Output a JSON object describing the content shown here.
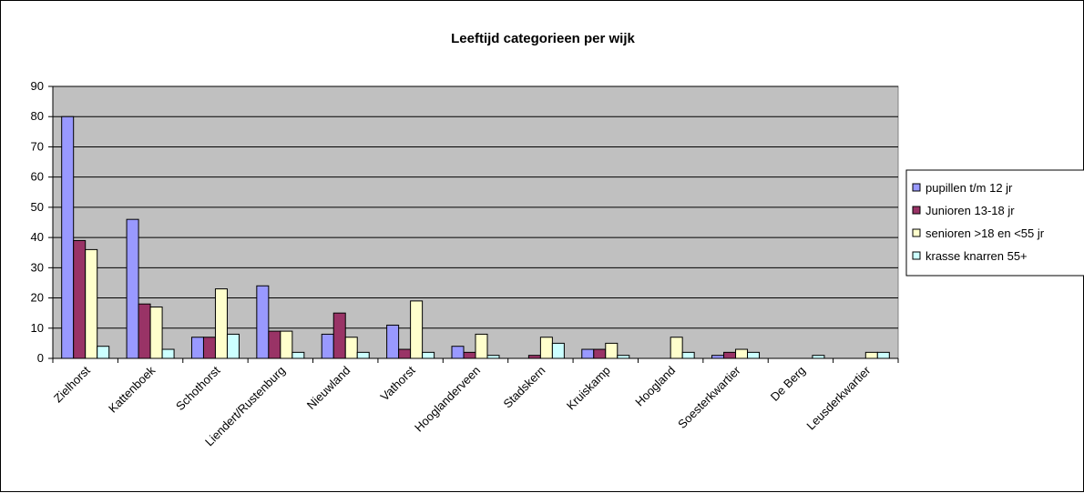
{
  "chart_data": {
    "type": "bar",
    "title": "Leeftijd categorieen per wijk",
    "xlabel": "",
    "ylabel": "",
    "ylim": [
      0,
      90
    ],
    "yticks": [
      0,
      10,
      20,
      30,
      40,
      50,
      60,
      70,
      80,
      90
    ],
    "grid": true,
    "legend_position": "right",
    "plot_background": "#c0c0c0",
    "categories": [
      "Zielhorst",
      "Kattenboek",
      "Schothorst",
      "Liendert/Rustenburg",
      "Nieuwland",
      "Vathorst",
      "Hooglanderveen",
      "Stadskern",
      "Kruiskamp",
      "Hoogland",
      "Soesterkwartier",
      "De Berg",
      "Leusderkwartier"
    ],
    "series": [
      {
        "name": "pupillen t/m 12 jr",
        "color": "#9999ff",
        "values": [
          80,
          46,
          7,
          24,
          8,
          11,
          4,
          0,
          3,
          0,
          1,
          0,
          0
        ]
      },
      {
        "name": "Junioren 13-18 jr",
        "color": "#993366",
        "values": [
          39,
          18,
          7,
          9,
          15,
          3,
          2,
          1,
          3,
          0,
          2,
          0,
          0
        ]
      },
      {
        "name": "senioren >18 en <55 jr",
        "color": "#ffffcc",
        "values": [
          36,
          17,
          23,
          9,
          7,
          19,
          8,
          7,
          5,
          7,
          3,
          0,
          2
        ]
      },
      {
        "name": "krasse knarren 55+",
        "color": "#ccffff",
        "values": [
          4,
          3,
          8,
          2,
          2,
          2,
          1,
          5,
          1,
          2,
          2,
          1,
          2
        ]
      }
    ]
  }
}
